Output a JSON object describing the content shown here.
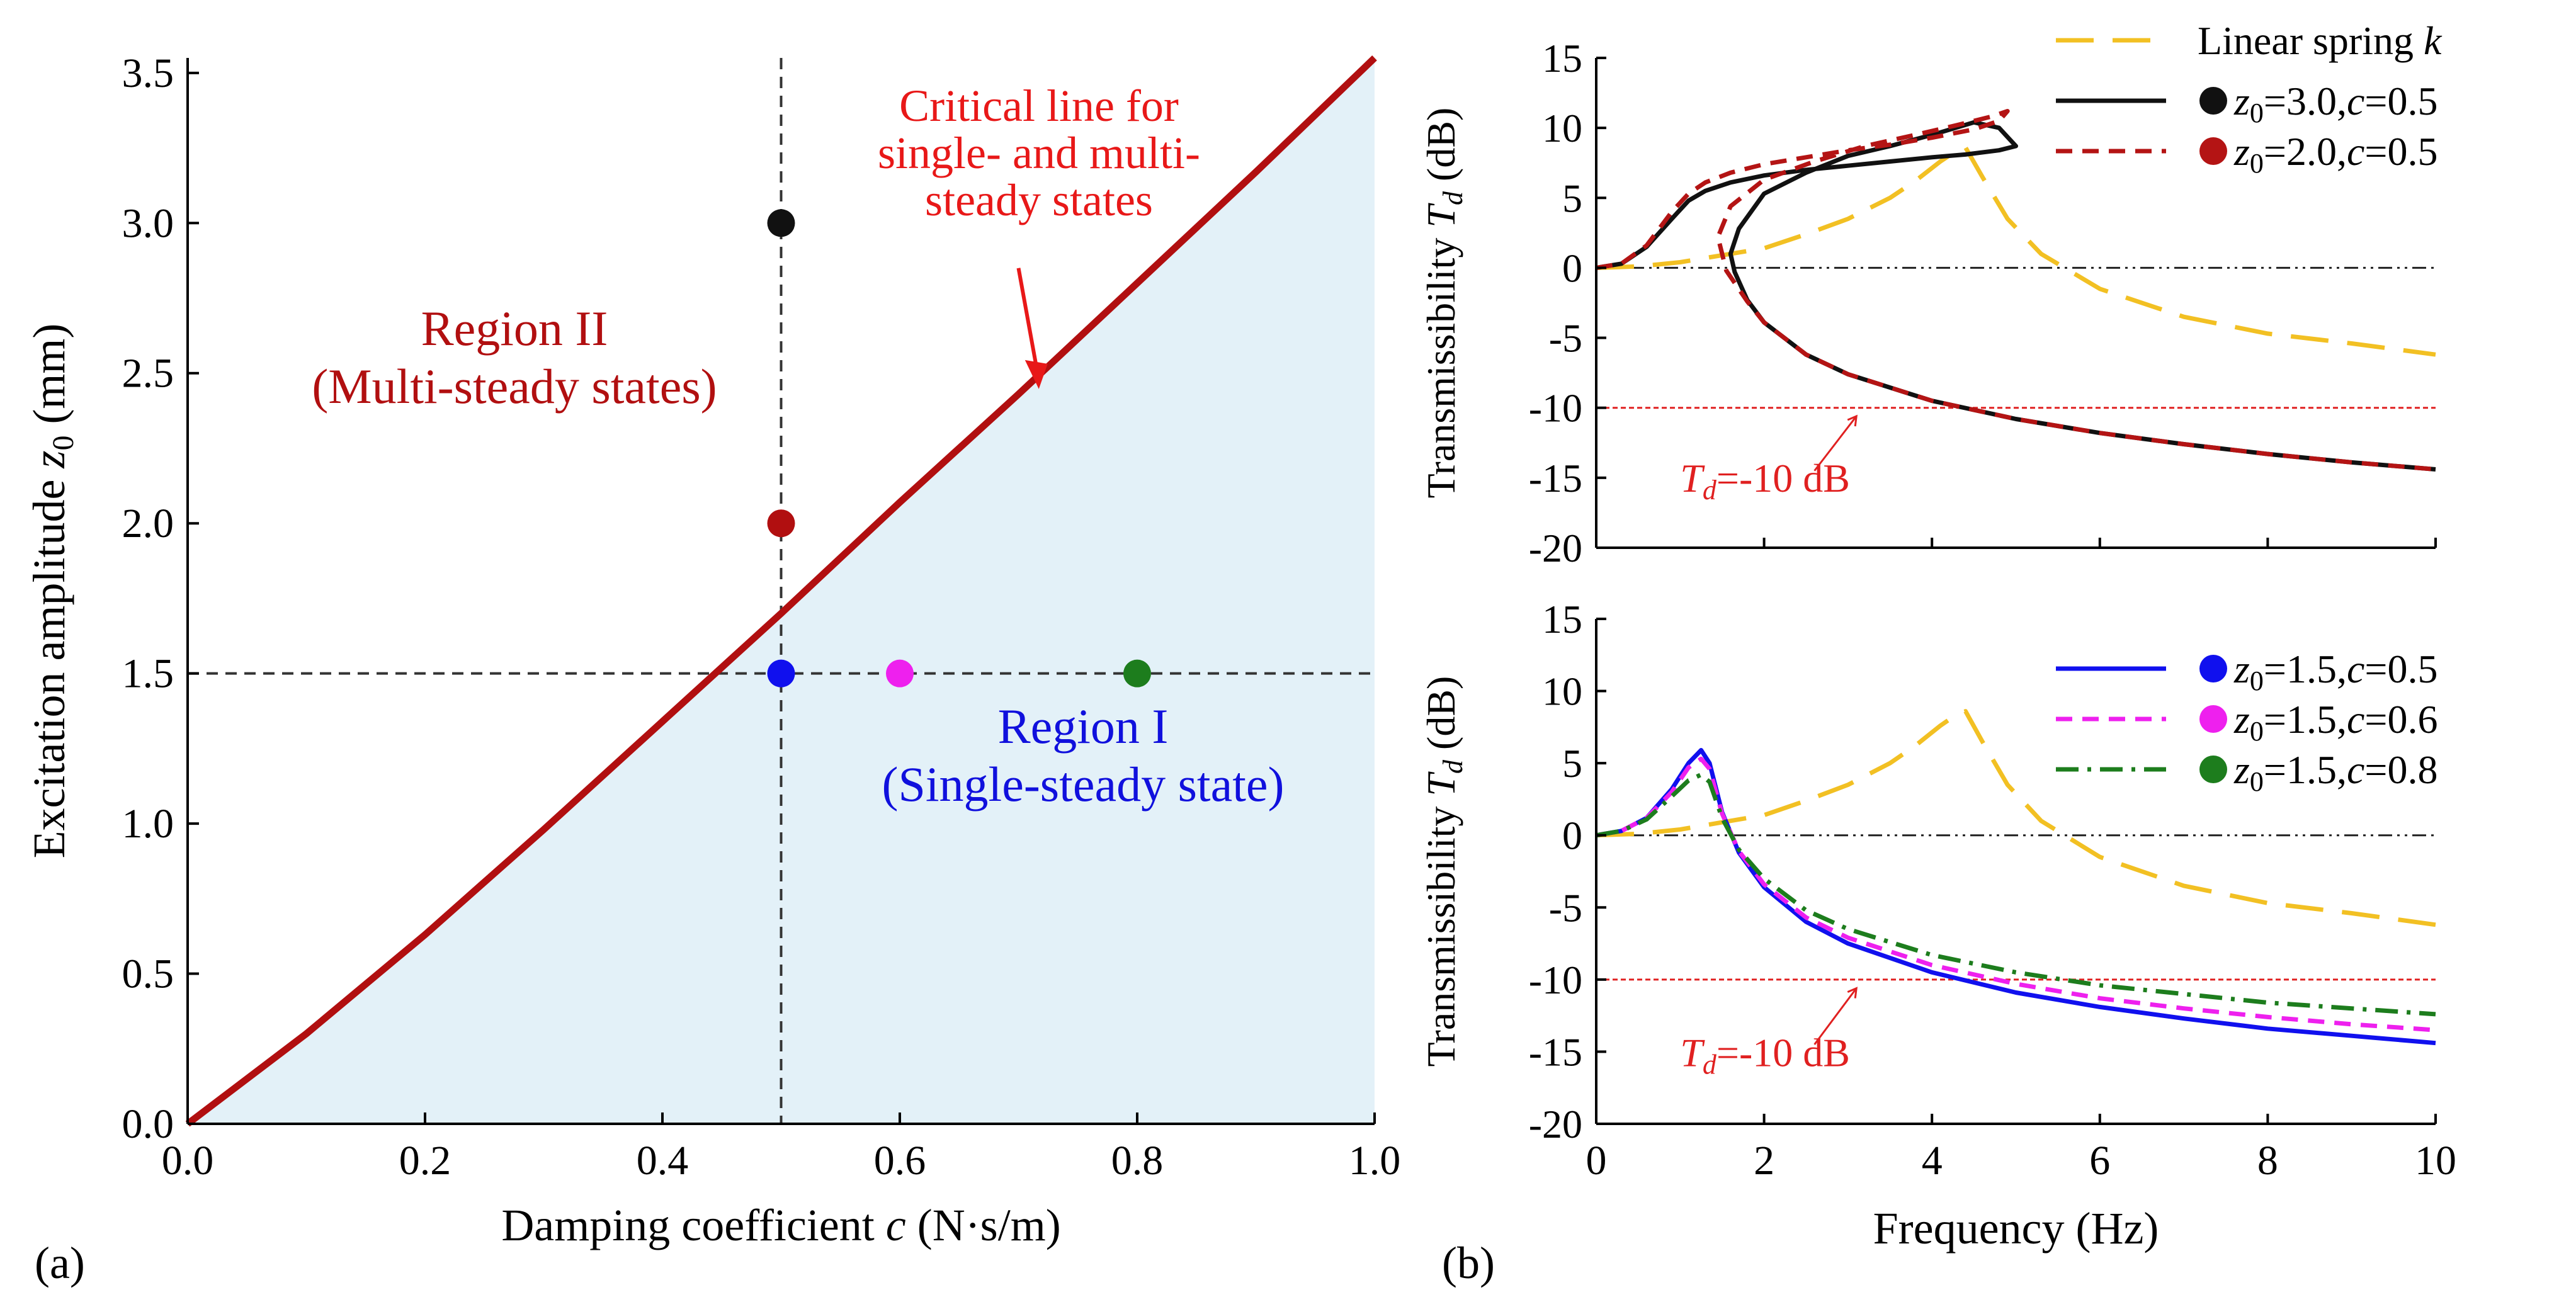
{
  "colors": {
    "region_fill": "#e3f1f8",
    "critical": "#b10f10",
    "black": "#111111",
    "red_dash": "#b41414",
    "blue": "#1010ee",
    "magenta": "#ee20ee",
    "green": "#1d7d1d",
    "yellow": "#f2c023",
    "ref_red": "#e02020",
    "arrow_red": "#e81818",
    "region1_text": "#1010dd"
  },
  "chart_data": [
    {
      "id": "a",
      "type": "line",
      "panel_label": "(a)",
      "xlabel_main": "Damping coefficient ",
      "xlabel_var": "c",
      "xlabel_unit": " (N·s/m)",
      "ylabel_main": "Excitation amplitude ",
      "ylabel_var": "z",
      "ylabel_sub": "0",
      "ylabel_unit": " (mm)",
      "xlim": [
        0.0,
        1.0
      ],
      "ylim": [
        0.0,
        3.55
      ],
      "xticks": [
        0.0,
        0.2,
        0.4,
        0.6,
        0.8,
        1.0
      ],
      "xtick_labels": [
        "0.0",
        "0.2",
        "0.4",
        "0.6",
        "0.8",
        "1.0"
      ],
      "yticks": [
        0.0,
        0.5,
        1.0,
        1.5,
        2.0,
        2.5,
        3.0,
        3.5
      ],
      "ytick_labels": [
        "0.0",
        "0.5",
        "1.0",
        "1.5",
        "2.0",
        "2.5",
        "3.0",
        "3.5"
      ],
      "critical_line": {
        "name": "Critical line for single- and multi-steady states",
        "x": [
          0.0,
          0.1,
          0.2,
          0.3,
          0.4,
          0.5,
          0.6,
          0.7,
          0.8,
          0.9,
          1.0
        ],
        "y": [
          0.0,
          0.3,
          0.63,
          0.98,
          1.34,
          1.7,
          2.07,
          2.43,
          2.8,
          3.17,
          3.55
        ]
      },
      "guide_lines": {
        "vertical_c": 0.5,
        "horizontal_z0": 1.5
      },
      "points": [
        {
          "c": 0.5,
          "z0": 3.0,
          "color": "#111111"
        },
        {
          "c": 0.5,
          "z0": 2.0,
          "color": "#b10f10"
        },
        {
          "c": 0.5,
          "z0": 1.5,
          "color": "#1010ee"
        },
        {
          "c": 0.6,
          "z0": 1.5,
          "color": "#ee20ee"
        },
        {
          "c": 0.8,
          "z0": 1.5,
          "color": "#1d7d1d"
        }
      ],
      "annotations": {
        "critical_lines": [
          "Critical line for",
          "single- and multi-",
          "steady states"
        ],
        "region2": [
          "Region II",
          "(Multi-steady states)"
        ],
        "region1": [
          "Region I",
          "(Single-steady state)"
        ],
        "arrow_from": [
          0.7,
          2.85
        ],
        "arrow_to": [
          0.715,
          2.46
        ]
      }
    },
    {
      "id": "b-top",
      "type": "line",
      "ylabel_main": "Transmissibility ",
      "ylabel_var": "T",
      "ylabel_sub": "d",
      "ylabel_unit": " (dB)",
      "xlim": [
        0,
        10
      ],
      "ylim": [
        -20,
        15
      ],
      "yticks": [
        15,
        10,
        5,
        0,
        -5,
        -10,
        -15,
        -20
      ],
      "ytick_labels": [
        "15",
        "10",
        "5",
        "0",
        "-5",
        "-10",
        "-15",
        "-20"
      ],
      "reference_lines": {
        "zero_db": 0,
        "minus10_db": -10
      },
      "ref_label": {
        "var": "T",
        "sub": "d",
        "text": "=-10 dB",
        "x": 1.0,
        "y": -16,
        "arrow_from": [
          2.6,
          -14.5
        ],
        "arrow_to": [
          3.1,
          -10.6
        ]
      },
      "series": [
        {
          "name": "Linear spring k",
          "legend_text": "Linear spring ",
          "legend_var": "k",
          "style": "long-dash",
          "color": "#f2c023",
          "x": [
            0,
            0.5,
            1,
            1.5,
            2,
            2.5,
            3,
            3.5,
            3.8,
            4.1,
            4.3,
            4.4,
            4.6,
            4.9,
            5.3,
            6,
            7,
            8,
            9,
            10
          ],
          "y": [
            0,
            0.1,
            0.4,
            0.9,
            1.4,
            2.4,
            3.5,
            5.0,
            6.2,
            7.6,
            8.4,
            8.6,
            6.5,
            3.5,
            1.0,
            -1.5,
            -3.5,
            -4.7,
            -5.4,
            -6.2
          ]
        },
        {
          "name": "z0=3.0, c=0.5",
          "legend_var": "z",
          "legend_sub": "0",
          "legend_val": "=3.0,",
          "legend_var2": "c",
          "legend_val2": "=0.5",
          "style": "solid",
          "color": "#111111",
          "x": [
            0,
            0.3,
            0.6,
            0.9,
            1.1,
            1.3,
            1.6,
            2.0,
            2.5,
            3.0,
            3.5,
            4.0,
            4.4,
            4.8,
            5.0,
            4.8,
            4.5,
            4.0,
            3.5,
            3.0,
            2.5,
            2.0,
            1.7,
            1.6,
            1.65,
            1.8,
            2.0,
            2.5,
            3.0,
            4.0,
            5.0,
            6.0,
            7.0,
            8.0,
            9.0,
            10.0
          ],
          "y": [
            0,
            0.3,
            1.5,
            3.5,
            4.8,
            5.5,
            6.1,
            6.6,
            7.0,
            7.3,
            7.6,
            7.9,
            8.1,
            8.4,
            8.7,
            10.0,
            10.4,
            9.5,
            8.7,
            8.0,
            6.8,
            5.3,
            2.8,
            1.0,
            -0.3,
            -2.3,
            -3.9,
            -6.2,
            -7.6,
            -9.5,
            -10.8,
            -11.8,
            -12.6,
            -13.3,
            -13.9,
            -14.4
          ]
        },
        {
          "name": "z0=2.0, c=0.5",
          "legend_var": "z",
          "legend_sub": "0",
          "legend_val": "=2.0,",
          "legend_var2": "c",
          "legend_val2": "=0.5",
          "style": "dash",
          "color": "#b41414",
          "x": [
            0,
            0.3,
            0.6,
            0.9,
            1.1,
            1.3,
            1.6,
            2.0,
            2.5,
            3.0,
            3.5,
            4.0,
            4.5,
            4.8,
            4.9,
            4.7,
            4.3,
            3.8,
            3.2,
            2.6,
            2.0,
            1.6,
            1.45,
            1.55,
            1.8,
            2.0,
            2.5,
            3.0,
            4.0,
            5.0,
            6.0,
            7.0,
            8.0,
            9.0,
            10.0
          ],
          "y": [
            0,
            0.3,
            1.6,
            4.0,
            5.3,
            6.1,
            6.8,
            7.4,
            7.9,
            8.4,
            8.8,
            9.3,
            9.9,
            10.5,
            11.2,
            10.8,
            10.2,
            9.5,
            8.7,
            7.6,
            6.3,
            4.4,
            2.2,
            -0.2,
            -2.4,
            -3.9,
            -6.2,
            -7.6,
            -9.5,
            -10.8,
            -11.8,
            -12.6,
            -13.3,
            -13.9,
            -14.4
          ]
        }
      ]
    },
    {
      "id": "b-bottom",
      "type": "line",
      "panel_label": "(b)",
      "xlabel": "Frequency (Hz)",
      "ylabel_main": "Transmissibility ",
      "ylabel_var": "T",
      "ylabel_sub": "d",
      "ylabel_unit": " (dB)",
      "xlim": [
        0,
        10
      ],
      "ylim": [
        -20,
        15
      ],
      "xticks": [
        0,
        2,
        4,
        6,
        8,
        10
      ],
      "xtick_labels": [
        "0",
        "2",
        "4",
        "6",
        "8",
        "10"
      ],
      "yticks": [
        15,
        10,
        5,
        0,
        -5,
        -10,
        -15,
        -20
      ],
      "ytick_labels": [
        "15",
        "10",
        "5",
        "0",
        "-5",
        "-10",
        "-15",
        "-20"
      ],
      "reference_lines": {
        "zero_db": 0,
        "minus10_db": -10
      },
      "ref_label": {
        "var": "T",
        "sub": "d",
        "text": "=-10 dB",
        "x": 1.0,
        "y": -16,
        "arrow_from": [
          2.6,
          -14.5
        ],
        "arrow_to": [
          3.1,
          -10.6
        ]
      },
      "series": [
        {
          "name": "Linear spring k",
          "legend": false,
          "style": "long-dash",
          "color": "#f2c023",
          "x": [
            0,
            0.5,
            1,
            1.5,
            2,
            2.5,
            3,
            3.5,
            3.8,
            4.1,
            4.3,
            4.4,
            4.6,
            4.9,
            5.3,
            6,
            7,
            8,
            9,
            10
          ],
          "y": [
            0,
            0.1,
            0.4,
            0.9,
            1.4,
            2.4,
            3.5,
            5.0,
            6.2,
            7.6,
            8.4,
            8.6,
            6.5,
            3.5,
            1.0,
            -1.5,
            -3.5,
            -4.7,
            -5.4,
            -6.2
          ]
        },
        {
          "name": "z0=1.5, c=0.5",
          "legend_var": "z",
          "legend_sub": "0",
          "legend_val": "=1.5,",
          "legend_var2": "c",
          "legend_val2": "=0.5",
          "style": "solid",
          "color": "#1010ee",
          "x": [
            0,
            0.3,
            0.6,
            0.9,
            1.1,
            1.25,
            1.35,
            1.5,
            1.7,
            2.0,
            2.5,
            3.0,
            4.0,
            5.0,
            6.0,
            7.0,
            8.0,
            9.0,
            10.0
          ],
          "y": [
            0,
            0.3,
            1.2,
            3.2,
            5.0,
            5.9,
            5.0,
            1.6,
            -1.2,
            -3.6,
            -6.0,
            -7.5,
            -9.5,
            -10.9,
            -11.9,
            -12.7,
            -13.4,
            -13.9,
            -14.4
          ]
        },
        {
          "name": "z0=1.5, c=0.6",
          "legend_var": "z",
          "legend_sub": "0",
          "legend_val": "=1.5,",
          "legend_var2": "c",
          "legend_val2": "=0.6",
          "style": "dash",
          "color": "#ee20ee",
          "x": [
            0,
            0.3,
            0.6,
            0.9,
            1.1,
            1.25,
            1.35,
            1.5,
            1.7,
            2.0,
            2.5,
            3.0,
            4.0,
            5.0,
            6.0,
            7.0,
            8.0,
            9.0,
            10.0
          ],
          "y": [
            0,
            0.3,
            1.2,
            3.0,
            4.7,
            5.3,
            4.6,
            1.5,
            -1.1,
            -3.4,
            -5.7,
            -7.1,
            -9.0,
            -10.3,
            -11.3,
            -12.0,
            -12.6,
            -13.1,
            -13.5
          ]
        },
        {
          "name": "z0=1.5, c=0.8",
          "legend_var": "z",
          "legend_sub": "0",
          "legend_val": "=1.5,",
          "legend_var2": "c",
          "legend_val2": "=0.8",
          "style": "dash-dot",
          "color": "#1d7d1d",
          "x": [
            0,
            0.3,
            0.6,
            0.9,
            1.1,
            1.25,
            1.35,
            1.5,
            1.7,
            2.0,
            2.5,
            3.0,
            4.0,
            5.0,
            6.0,
            7.0,
            8.0,
            9.0,
            10.0
          ],
          "y": [
            0,
            0.3,
            1.1,
            2.7,
            3.8,
            4.2,
            3.7,
            1.2,
            -1.0,
            -3.0,
            -5.2,
            -6.5,
            -8.3,
            -9.5,
            -10.4,
            -11.0,
            -11.6,
            -12.0,
            -12.4
          ]
        }
      ]
    }
  ]
}
